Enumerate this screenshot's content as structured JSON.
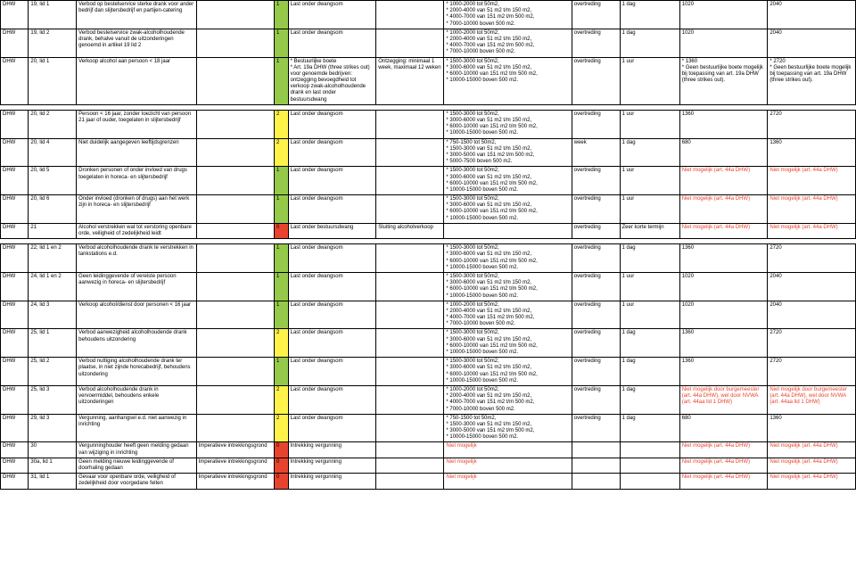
{
  "rows": [
    {
      "c1": "DHW",
      "c2": "19, lid 1",
      "c3": "Verbod op bestelservice sterke drank voor ander bedrijf dan slijtersbedrijf en partijen-catering",
      "c4": "",
      "c5color": "green",
      "c5": "1",
      "c6": "Last onder dwangsom",
      "c7": "",
      "c8": "* 1000-2000 tot 50m2,\n* 2000-4000 van 51 m2 t/m 150 m2,\n* 4000-7000 van 151 m2 t/m 500 m2,\n* 7000-10000 boven 500 m2.",
      "c9": "overtreding",
      "c10": "1 dag",
      "c11": "1020",
      "c12": "2040"
    },
    {
      "c1": "DHW",
      "c2": "19, lid 2",
      "c3": "Verbod bestelservice zwak-alcoholhoudende drank, behalve vanuit de uitzonderingen genoemd in artikel 19 lid 2",
      "c4": "",
      "c5color": "green",
      "c5": "1",
      "c6": "Last onder dwangsom",
      "c7": "",
      "c8": "* 1000-2000 tot 50m2,\n* 2000-4000 van 51 m2 t/m 150 m2,\n* 4000-7000 van 151 m2 t/m 500 m2,\n* 7000-10000 boven 500 m2.",
      "c9": "overtreding",
      "c10": "1 dag",
      "c11": "1020",
      "c12": "2040"
    },
    {
      "c1": "DHW",
      "c2": "20, lid 1",
      "c3": "Verkoop alcohol aan persoon < 18 jaar",
      "c4": "",
      "c5color": "green",
      "c5": "1",
      "c6": "* Bestuurlijke boete\n* Art. 19a DHW (three strikes out) voor genoemde bedrijven: ontzegging bevoegdheid tot verkoop zwak-alcoholhoudende drank en last onder bestuursdwang",
      "c7": "Ontzegging: minimaal 1 week, maximaal 12 weken",
      "c8": "* 1500-3000 tot 50m2,\n* 3000-6000 van 51 m2 t/m 150 m2,\n* 6000-10000 van 151 m2 t/m 500 m2,\n* 10000-15000 boven 500 m2.",
      "c9": "overtreding",
      "c10": "1 uur",
      "c11": "* 1360\n* Geen bestuurlijke boete mogelijk bij toepassing van art. 19a DHW (three strikes out).",
      "c12": "* 2720\n* Geen bestuurlijke boete mogelijk bij toepassing van art. 19a DHW (three strikes out)."
    },
    {
      "spacer": true
    },
    {
      "c1": "DHW",
      "c2": "20, lid 2",
      "c3": "Persoon < 16 jaar, zonder toezicht van persoon 21 jaar of ouder, toegelaten in slijtersbedrijf",
      "c4": "",
      "c5color": "yellow",
      "c5": "2",
      "c6": "Last onder dwangsom",
      "c7": "",
      "c8": "* 1500-3000 tot 50m2,\n* 3000-6000 van 51 m2 t/m 150 m2,\n* 6000-10000 van 151 m2 t/m 500 m2,\n* 10000-15000 boven 500 m2.",
      "c9": "overtreding",
      "c10": "1 uur",
      "c11": "1360",
      "c12": "2720"
    },
    {
      "c1": "DHW",
      "c2": "20, lid 4",
      "c3": "Niet duidelijk aangegeven leeftijdsgrenzen",
      "c4": "",
      "c5color": "yellow",
      "c5": "2",
      "c6": "Last onder dwangsom",
      "c7": "",
      "c8": "* 750-1500 tot 50m2,\n* 1500-3000 van 51 m2 t/m 150 m2,\n* 3000-5000 van 151 m2 t/m 500 m2,\n* 5000-7500 boven 500 m2.",
      "c9": "week",
      "c10": "1 dag",
      "c11": "680",
      "c12": "1360"
    },
    {
      "c1": "DHW",
      "c2": "20, lid 5",
      "c3": "Dronken personen of onder invloed van drugs toegelaten in horeca- en slijtersbedrijf",
      "c4": "",
      "c5color": "green",
      "c5": "1",
      "c6": "Last onder dwangsom",
      "c7": "",
      "c8": "* 1500-3000 tot 50m2,\n* 3000-6000 van 51 m2 t/m 150 m2,\n* 6000-10000 van 151 m2 t/m 500 m2,\n* 10000-15000 boven 500 m2.",
      "c9": "overtreding",
      "c10": "1 uur",
      "c11": "Niet mogelijk (art. 44a DHW)",
      "c11red": true,
      "c12": "Niet mogelijk (art. 44a DHW)",
      "c12red": true
    },
    {
      "c1": "DHW",
      "c2": "20, lid 6",
      "c3": "Onder invloed (dronken of drugs) aan het werk zijn in horeca- en slijtersbedrijf",
      "c4": "",
      "c5color": "green",
      "c5": "1",
      "c6": "Last onder dwangsom",
      "c7": "",
      "c8": "* 1500-3000 tot 50m2,\n* 3000-6000 van 51 m2 t/m 150 m2,\n* 6000-10000 van 151 m2 t/m 500 m2,\n* 10000-15000 boven 500 m2.",
      "c9": "overtreding",
      "c10": "1 uur",
      "c11": "Niet mogelijk (art. 44a DHW)",
      "c11red": true,
      "c12": "Niet mogelijk (art. 44a DHW)",
      "c12red": true
    },
    {
      "c1": "DHW",
      "c2": "21",
      "c3": "Alcohol verstrekken wat tot verstoring openbare orde, veiligheid of zedelijkheid leidt",
      "c4": "",
      "c5color": "red",
      "c5": "0",
      "c6": "Last onder bestuursdwang",
      "c7": "Sluiting alcoholverkoop",
      "c8": "",
      "c9": "overtreding",
      "c10": "Zeer korte termijn",
      "c11": "Niet mogelijk (art. 44a DHW)",
      "c11red": true,
      "c12": "Niet mogelijk (art. 44a DHW)",
      "c12red": true
    },
    {
      "spacer": true
    },
    {
      "c1": "DHW",
      "c2": "22, lid 1 en 2",
      "c3": "Verbod alcoholhoudende drank te verstrekken in tankstations e.d.",
      "c4": "",
      "c5color": "green",
      "c5": "1",
      "c6": "Last onder dwangsom",
      "c7": "",
      "c8": "* 1500-3000 tot 50m2,\n* 3000-6000 van 51 m2 t/m 150 m2,\n* 6000-10000 van 151 m2 t/m 500 m2,\n* 10000-15000 boven 500 m2.",
      "c9": "overtreding",
      "c10": "1 dag",
      "c11": "1360",
      "c12": "2720"
    },
    {
      "c1": "DHW",
      "c2": "24, lid 1 en 2",
      "c3": "Geen leidinggevende of vereiste persoon aanwezig in horeca- en slijtersbedrijf",
      "c4": "",
      "c5color": "green",
      "c5": "1",
      "c6": "Last onder dwangsom",
      "c7": "",
      "c8": "* 1500-3000 tot 50m2,\n* 3000-6000 van 51 m2 t/m 150 m2,\n* 6000-10000 van 151 m2 t/m 500 m2,\n* 10000-15000 boven 500 m2.",
      "c9": "overtreding",
      "c10": "1 uur",
      "c11": "1020",
      "c12": "2040"
    },
    {
      "c1": "DHW",
      "c2": "24, lid 3",
      "c3": "Verkoop alcohol/dienst door personen < 16 jaar",
      "c4": "",
      "c5color": "green",
      "c5": "1",
      "c6": "Last onder dwangsom",
      "c7": "",
      "c8": "* 1000-2000 tot 50m2,\n* 2000-4000 van 51 m2 t/m 150 m2,\n* 4000-7000 van 151 m2 t/m 500 m2,\n* 7000-10000 boven 500 m2.",
      "c9": "overtreding",
      "c10": "1 uur",
      "c11": "1020",
      "c12": "2040"
    },
    {
      "c1": "DHW",
      "c2": "25, lid 1",
      "c3": "Verbod aanwezigheid alcoholhoudende drank behoudens uitzondering",
      "c4": "",
      "c5color": "yellow",
      "c5": "2",
      "c6": "Last onder dwangsom",
      "c7": "",
      "c8": "* 1500-3000 tot 50m2,\n* 3000-6000 van 51 m2 t/m 150 m2,\n* 6000-10000 van 151 m2 t/m 500 m2,\n* 10000-15000 boven 500 m2.",
      "c9": "overtreding",
      "c10": "1 dag",
      "c11": "1360",
      "c12": "2720"
    },
    {
      "c1": "DHW",
      "c2": "25, lid 2",
      "c3": "Verbod nuttiging alcoholhoudende drank ter plaatse, in niet zijnde horecabedrijf, behoudens uitzondering",
      "c4": "",
      "c5color": "green",
      "c5": "1",
      "c6": "Last onder dwangsom",
      "c7": "",
      "c8": "* 1500-3000 tot 50m2,\n* 3000-6000 van 51 m2 t/m 150 m2,\n* 6000-10000 van 151 m2 t/m 500 m2,\n* 10000-15000 boven 500 m2.",
      "c9": "overtreding",
      "c10": "1 dag",
      "c11": "1360",
      "c12": "2720"
    },
    {
      "c1": "DHW",
      "c2": "25, lid 3",
      "c3": "Verbod alcoholhoudende drank in vervoermiddel, behoudens enkele uitzonderingen",
      "c4": "",
      "c5color": "yellow",
      "c5": "2",
      "c6": "Last onder dwangsom",
      "c7": "",
      "c8": "* 1000-2000 tot 50m2,\n* 2000-4000 van 51 m2 t/m 150 m2,\n* 4000-7000 van 151 m2 t/m 500 m2,\n* 7000-10000 boven 500 m2.",
      "c9": "overtreding",
      "c10": "1 dag",
      "c11": "Niet mogelijk door burgemeester (art. 44a DHW), wel door NVWA (art. 44aa lid 1 DHW)",
      "c11red": true,
      "c12": "Niet mogelijk door burgemeester (art. 44a DHW), wel door NVWA (art. 44aa lid 1 DHW)",
      "c12red": true
    },
    {
      "c1": "DHW",
      "c2": "29, lid 3",
      "c3": "Vergunning, aanhangsel e.d. niet aanwezig in inrichting",
      "c4": "",
      "c5color": "yellow",
      "c5": "2",
      "c6": "Last onder dwangsom",
      "c7": "",
      "c8": "* 750-1500 tot 50m2,\n* 1500-3000 van 51 m2 t/m 150 m2,\n* 3000-5000 van 151 m2 t/m 500 m2,\n* 10000-15000 boven 500 m2.",
      "c9": "overtreding",
      "c10": "1 dag",
      "c11": "680",
      "c12": "1360"
    },
    {
      "c1": "DHW",
      "c2": "30",
      "c3": "Vergunninghouder heeft geen melding gedaan van wijziging in inrichting",
      "c4": "Imperatieve intrekkingsgrond",
      "c5color": "red",
      "c5": "0",
      "c6": "Intrekking vergunning",
      "c7": "",
      "c8": "Niet mogelijk",
      "c8red": true,
      "c9": "",
      "c10": "",
      "c11": "Niet mogelijk (art. 44a DHW)",
      "c11red": true,
      "c12": "Niet mogelijk (art. 44a DHW)",
      "c12red": true
    },
    {
      "c1": "DHW",
      "c2": "30a, lid 1",
      "c3": "Geen melding nieuwe leidinggevende of doorhaling gedaan",
      "c4": "Imperatieve intrekkingsgrond",
      "c5color": "red",
      "c5": "0",
      "c6": "Intrekking vergunning",
      "c7": "",
      "c8": "Niet mogelijk",
      "c8red": true,
      "c9": "",
      "c10": "",
      "c11": "Niet mogelijk (art. 44a DHW)",
      "c11red": true,
      "c12": "Niet mogelijk (art. 44a DHW)",
      "c12red": true
    },
    {
      "c1": "DHW",
      "c2": "31, lid 1",
      "c3": "Gevaar voor openbare orde, veiligheid of zedelijkheid door voorgedane feiten",
      "c4": "Imperatieve intrekkingsgrond",
      "c5color": "red",
      "c5": "0",
      "c6": "Intrekking vergunning",
      "c7": "",
      "c8": "Niet mogelijk",
      "c8red": true,
      "c9": "",
      "c10": "",
      "c11": "Niet mogelijk (art. 44a DHW)",
      "c11red": true,
      "c12": "Niet mogelijk (art. 44a DHW)",
      "c12red": true
    }
  ]
}
